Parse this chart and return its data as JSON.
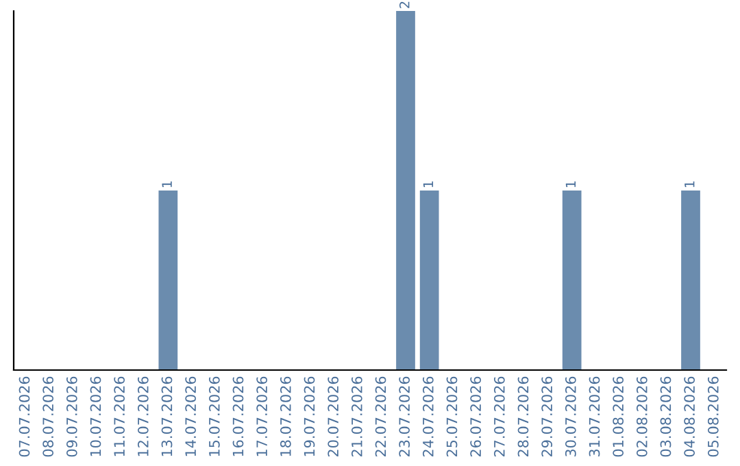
{
  "chart_data": {
    "type": "bar",
    "categories": [
      "07.07.2026",
      "08.07.2026",
      "09.07.2026",
      "10.07.2026",
      "11.07.2026",
      "12.07.2026",
      "13.07.2026",
      "14.07.2026",
      "15.07.2026",
      "16.07.2026",
      "17.07.2026",
      "18.07.2026",
      "19.07.2026",
      "20.07.2026",
      "21.07.2026",
      "22.07.2026",
      "23.07.2026",
      "24.07.2026",
      "25.07.2026",
      "26.07.2026",
      "27.07.2026",
      "28.07.2026",
      "29.07.2026",
      "30.07.2026",
      "31.07.2026",
      "01.08.2026",
      "02.08.2026",
      "03.08.2026",
      "04.08.2026",
      "05.08.2026"
    ],
    "values": [
      0,
      0,
      0,
      0,
      0,
      0,
      1,
      0,
      0,
      0,
      0,
      0,
      0,
      0,
      0,
      0,
      2,
      1,
      0,
      0,
      0,
      0,
      0,
      1,
      0,
      0,
      0,
      0,
      1,
      0
    ],
    "value_labels": [
      null,
      null,
      null,
      null,
      null,
      null,
      "1",
      null,
      null,
      null,
      null,
      null,
      null,
      null,
      null,
      null,
      "2",
      "1",
      null,
      null,
      null,
      null,
      null,
      "1",
      null,
      null,
      null,
      null,
      "1",
      null
    ],
    "color": "#6b8cae",
    "grid": false,
    "legend": false
  }
}
